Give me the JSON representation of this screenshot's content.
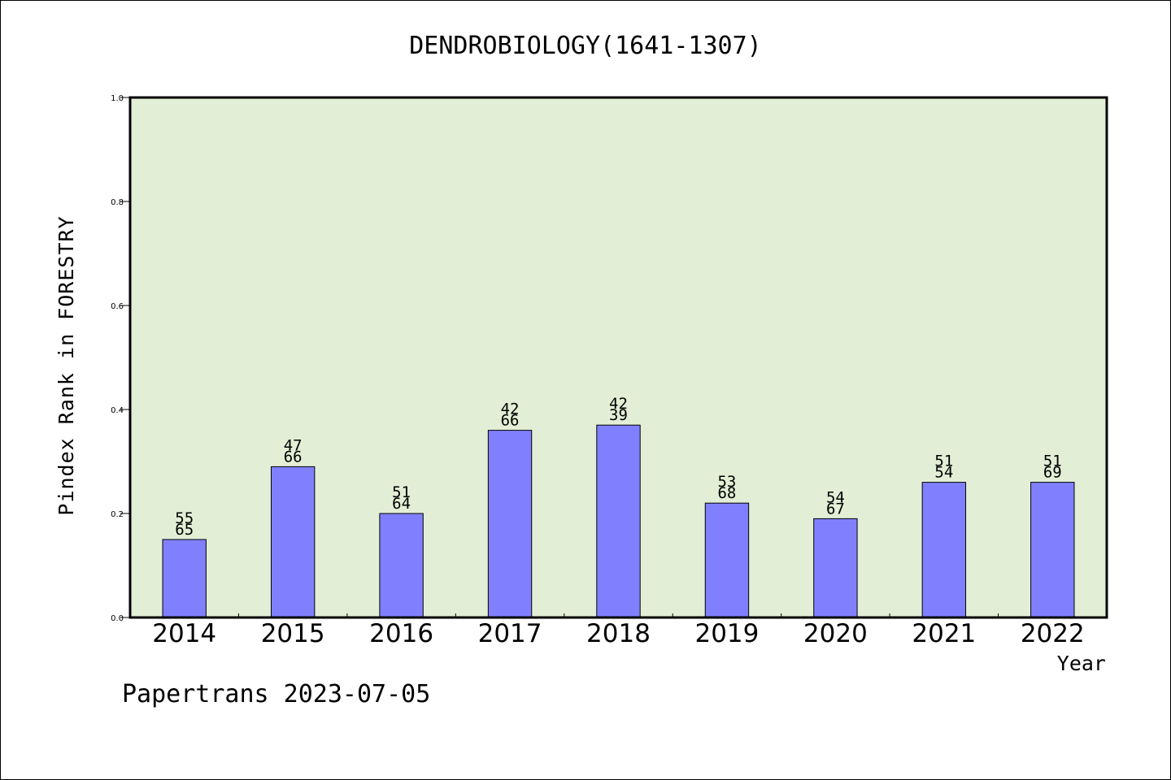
{
  "chart_data": {
    "type": "bar",
    "title": "DENDROBIOLOGY(1641-1307)",
    "xlabel": "Year",
    "ylabel": "Pindex Rank in FORESTRY",
    "categories": [
      "2014",
      "2015",
      "2016",
      "2017",
      "2018",
      "2019",
      "2020",
      "2021",
      "2022"
    ],
    "values": [
      0.15,
      0.29,
      0.2,
      0.36,
      0.37,
      0.22,
      0.19,
      0.26,
      0.26
    ],
    "labels_upper": [
      "55",
      "47",
      "51",
      "42",
      "42",
      "53",
      "54",
      "51",
      "51"
    ],
    "labels_lower": [
      "65",
      "66",
      "64",
      "66",
      "39",
      "68",
      "67",
      "54",
      "69"
    ],
    "ylim": [
      0,
      1.0
    ],
    "yticks": [
      "0.0",
      "0.2",
      "0.4",
      "0.6",
      "0.8",
      "1.0"
    ],
    "grid": false,
    "colors": {
      "plot_background": "#e2efd6",
      "bar_fill": "#8080ff",
      "bar_stroke": "#000000"
    }
  },
  "footer": {
    "credit": "Papertrans 2023-07-05"
  }
}
